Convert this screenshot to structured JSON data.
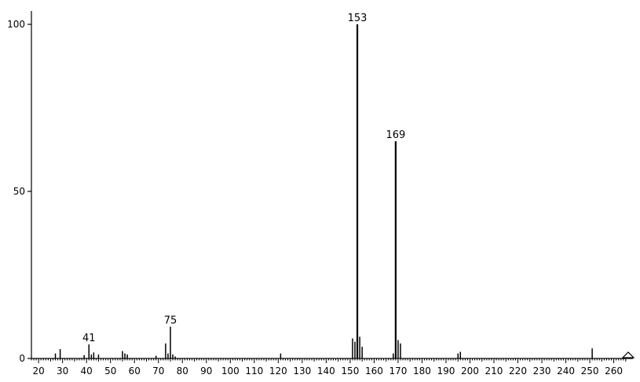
{
  "chart_data": {
    "type": "bar",
    "title": "",
    "xlabel": "",
    "ylabel": "",
    "xlim": [
      17,
      268
    ],
    "ylim": [
      0,
      104
    ],
    "grid": false,
    "legend": "none",
    "x_ticks": [
      20,
      30,
      40,
      50,
      60,
      70,
      80,
      90,
      100,
      110,
      120,
      130,
      140,
      150,
      160,
      170,
      180,
      190,
      200,
      210,
      220,
      230,
      240,
      250,
      260
    ],
    "y_ticks": [
      0,
      50,
      100
    ],
    "peaks": [
      {
        "x": 27,
        "y": 1.5
      },
      {
        "x": 29,
        "y": 2.8
      },
      {
        "x": 39,
        "y": 1.0
      },
      {
        "x": 41,
        "y": 4.2
      },
      {
        "x": 42,
        "y": 1.2
      },
      {
        "x": 43,
        "y": 1.8
      },
      {
        "x": 45,
        "y": 1.2
      },
      {
        "x": 55,
        "y": 2.2
      },
      {
        "x": 56,
        "y": 1.5
      },
      {
        "x": 57,
        "y": 1.2
      },
      {
        "x": 69,
        "y": 0.8
      },
      {
        "x": 73,
        "y": 4.5
      },
      {
        "x": 74,
        "y": 1.5
      },
      {
        "x": 75,
        "y": 9.5
      },
      {
        "x": 76,
        "y": 1.2
      },
      {
        "x": 77,
        "y": 0.6
      },
      {
        "x": 121,
        "y": 1.5
      },
      {
        "x": 151,
        "y": 6.0
      },
      {
        "x": 152,
        "y": 5.0
      },
      {
        "x": 153,
        "y": 100
      },
      {
        "x": 154,
        "y": 6.5
      },
      {
        "x": 155,
        "y": 3.5
      },
      {
        "x": 168,
        "y": 1.5
      },
      {
        "x": 169,
        "y": 65.0
      },
      {
        "x": 170,
        "y": 5.5
      },
      {
        "x": 171,
        "y": 4.5
      },
      {
        "x": 195,
        "y": 1.5
      },
      {
        "x": 196,
        "y": 2.0
      },
      {
        "x": 251,
        "y": 3.0
      }
    ],
    "annotations": [
      {
        "text": "41",
        "x": 41,
        "y": 4.2
      },
      {
        "text": "75",
        "x": 75,
        "y": 9.5
      },
      {
        "text": "153",
        "x": 153,
        "y": 100
      },
      {
        "text": "169",
        "x": 169,
        "y": 65.0
      }
    ],
    "colors": {
      "axis": "#000000",
      "peak": "#000000",
      "background": "#ffffff"
    }
  }
}
